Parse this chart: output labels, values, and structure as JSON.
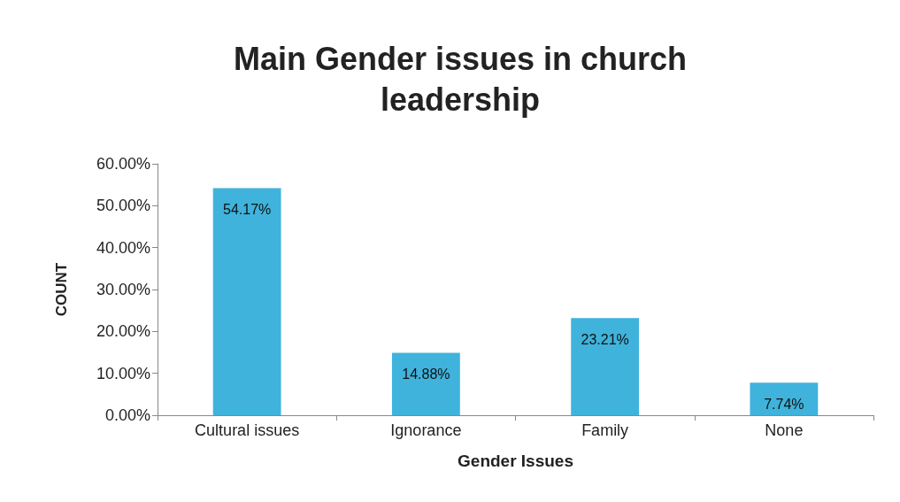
{
  "chart_data": {
    "type": "bar",
    "title": "Main Gender issues in church\nleadership",
    "xlabel": "Gender Issues",
    "ylabel": "COUNT",
    "categories": [
      "Cultural issues",
      "Ignorance",
      "Family",
      "None"
    ],
    "values": [
      54.17,
      14.88,
      23.21,
      7.74
    ],
    "value_labels": [
      "54.17%",
      "14.88%",
      "23.21%",
      "7.74%"
    ],
    "color": "#3fb3dc",
    "ylim": [
      0,
      60
    ],
    "yticks": [
      {
        "value": 0,
        "label": "0.00%"
      },
      {
        "value": 10,
        "label": "10.00%"
      },
      {
        "value": 20,
        "label": "20.00%"
      },
      {
        "value": 30,
        "label": "30.00%"
      },
      {
        "value": 40,
        "label": "40.00%"
      },
      {
        "value": 50,
        "label": "50.00%"
      },
      {
        "value": 60,
        "label": "60.00%"
      }
    ],
    "grid": false
  }
}
